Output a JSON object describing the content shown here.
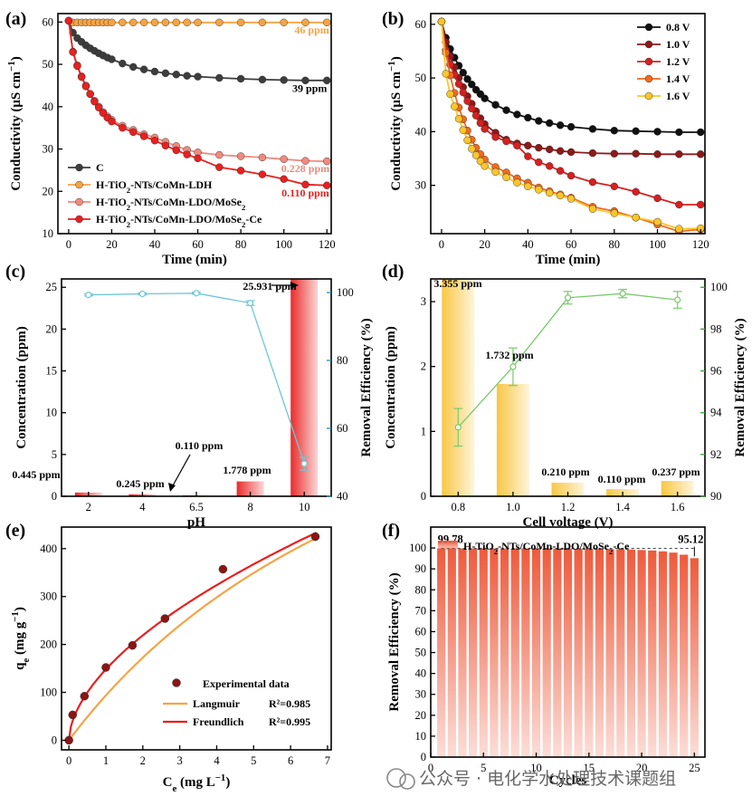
{
  "panels": {
    "a": "(a)",
    "b": "(b)",
    "c": "(c)",
    "d": "(d)",
    "e": "(e)",
    "f": "(f)"
  },
  "watermark": "公众号 · 电化学水处理技术课题组",
  "chart_data": [
    {
      "id": "a",
      "type": "line",
      "xlabel": "Time (min)",
      "ylabel": "Conductivity (μS cm⁻¹)",
      "xlim": [
        -5,
        122
      ],
      "ylim": [
        10,
        62
      ],
      "xticks": [
        0,
        20,
        40,
        60,
        80,
        100,
        120
      ],
      "yticks": [
        10,
        20,
        30,
        40,
        50,
        60
      ],
      "legend_position": "bottom-left",
      "series": [
        {
          "name": "C",
          "color": "#3d3d3d",
          "x": [
            0,
            2,
            4,
            6,
            8,
            10,
            12,
            14,
            16,
            18,
            20,
            25,
            30,
            35,
            40,
            45,
            50,
            55,
            60,
            70,
            80,
            90,
            100,
            110,
            120
          ],
          "y": [
            60.3,
            57.5,
            56.2,
            55.3,
            54.5,
            53.8,
            53.2,
            52.6,
            52.1,
            51.6,
            51.2,
            50.2,
            49.4,
            48.8,
            48.3,
            47.9,
            47.6,
            47.3,
            47.1,
            46.8,
            46.6,
            46.4,
            46.3,
            46.2,
            46.2
          ]
        },
        {
          "name": "H-TiO₂-NTs/CoMn-LDH",
          "color": "#f5a445",
          "x": [
            0,
            2,
            4,
            6,
            8,
            10,
            12,
            14,
            16,
            18,
            20,
            25,
            30,
            35,
            40,
            45,
            50,
            55,
            60,
            70,
            80,
            90,
            100,
            110,
            120
          ],
          "y": [
            60.3,
            59.9,
            59.9,
            59.9,
            59.9,
            59.9,
            59.9,
            59.9,
            59.9,
            59.9,
            59.9,
            59.9,
            59.9,
            59.9,
            59.9,
            59.9,
            59.9,
            59.9,
            59.9,
            59.9,
            59.9,
            59.9,
            59.9,
            59.9,
            59.9
          ]
        },
        {
          "name": "H-TiO₂-NTs/CoMn-LDO/MoSe₂",
          "color": "#f08a7e",
          "x": [
            0,
            2,
            4,
            6,
            8,
            10,
            12,
            14,
            16,
            18,
            20,
            25,
            30,
            35,
            40,
            45,
            50,
            55,
            60,
            70,
            80,
            90,
            100,
            110,
            120
          ],
          "y": [
            60.3,
            53.0,
            49.8,
            47.2,
            45.0,
            43.0,
            41.4,
            40.0,
            38.7,
            37.7,
            36.9,
            35.5,
            34.5,
            33.5,
            32.7,
            31.7,
            30.7,
            29.8,
            29.2,
            28.6,
            28.3,
            28.0,
            27.6,
            27.2,
            27.1
          ]
        },
        {
          "name": "H-TiO₂-NTs/CoMn-LDO/MoSe₂-Ce",
          "color": "#e8201f",
          "x": [
            0,
            2,
            4,
            6,
            8,
            10,
            12,
            14,
            16,
            18,
            20,
            25,
            30,
            35,
            40,
            45,
            50,
            55,
            60,
            70,
            80,
            90,
            100,
            110,
            120
          ],
          "y": [
            60.3,
            52.9,
            49.6,
            47.0,
            44.8,
            43.0,
            41.2,
            39.8,
            38.5,
            37.4,
            36.5,
            35.0,
            34.0,
            33.0,
            32.0,
            30.8,
            29.7,
            28.7,
            27.8,
            25.7,
            24.9,
            24.0,
            22.9,
            21.6,
            21.4
          ]
        }
      ],
      "annotations": [
        {
          "text": "46 ppm",
          "x": 113,
          "y": 57.3,
          "color": "#f5a445"
        },
        {
          "text": "39 ppm",
          "x": 112,
          "y": 43.5,
          "color": "#000000"
        },
        {
          "text": "0.228 ppm",
          "x": 110,
          "y": 24.5,
          "color": "#f08a7e"
        },
        {
          "text": "0.110 ppm",
          "x": 110,
          "y": 18.8,
          "color": "#e8201f"
        }
      ]
    },
    {
      "id": "b",
      "type": "line",
      "xlabel": "Time (min)",
      "ylabel": "Conductivity (μS cm⁻¹)",
      "xlim": [
        -5,
        122
      ],
      "ylim": [
        21,
        62
      ],
      "xticks": [
        0,
        20,
        40,
        60,
        80,
        100,
        120
      ],
      "yticks": [
        30,
        40,
        50,
        60
      ],
      "legend_position": "top-right",
      "series": [
        {
          "name": "0.8 V",
          "color": "#111111",
          "x": [
            0,
            2,
            4,
            6,
            8,
            10,
            12,
            14,
            16,
            18,
            20,
            25,
            30,
            35,
            40,
            45,
            50,
            55,
            60,
            70,
            80,
            90,
            100,
            110,
            120
          ],
          "y": [
            60.5,
            57.5,
            55.4,
            53.8,
            52.3,
            51.0,
            49.8,
            48.8,
            47.8,
            47.0,
            46.2,
            45.0,
            44.0,
            43.2,
            42.6,
            42.0,
            41.6,
            41.2,
            40.9,
            40.5,
            40.2,
            40.1,
            40.0,
            39.9,
            39.9
          ]
        },
        {
          "name": "1.0 V",
          "color": "#8c1a1a",
          "x": [
            0,
            2,
            4,
            6,
            8,
            10,
            12,
            14,
            16,
            18,
            20,
            25,
            30,
            35,
            40,
            45,
            50,
            55,
            60,
            70,
            80,
            90,
            100,
            110,
            120
          ],
          "y": [
            60.5,
            56.7,
            54.0,
            52.0,
            50.0,
            48.3,
            46.6,
            45.2,
            43.8,
            42.5,
            41.4,
            39.8,
            38.5,
            37.8,
            37.4,
            37.0,
            36.7,
            36.4,
            36.2,
            36.0,
            35.9,
            35.9,
            35.8,
            35.8,
            35.8
          ]
        },
        {
          "name": "1.2 V",
          "color": "#d62020",
          "x": [
            0,
            2,
            4,
            6,
            8,
            10,
            12,
            14,
            16,
            18,
            20,
            25,
            30,
            35,
            40,
            45,
            50,
            55,
            60,
            70,
            80,
            90,
            100,
            110,
            120
          ],
          "y": [
            60.5,
            55.2,
            52.5,
            50.6,
            48.9,
            47.3,
            45.7,
            44.3,
            43.0,
            41.6,
            40.5,
            39.0,
            38.2,
            37.4,
            35.4,
            34.3,
            33.6,
            32.7,
            31.8,
            30.6,
            29.8,
            28.8,
            27.6,
            26.4,
            26.4
          ]
        },
        {
          "name": "1.4 V",
          "color": "#f06a20",
          "x": [
            0,
            2,
            4,
            6,
            8,
            10,
            12,
            14,
            16,
            18,
            20,
            25,
            30,
            35,
            40,
            45,
            50,
            55,
            60,
            70,
            80,
            90,
            100,
            110,
            120
          ],
          "y": [
            60.5,
            54.7,
            50.5,
            47.2,
            44.5,
            42.3,
            40.2,
            38.5,
            37.0,
            35.8,
            34.8,
            33.4,
            32.4,
            31.3,
            30.5,
            29.6,
            28.9,
            28.3,
            27.7,
            26.0,
            25.2,
            24.0,
            22.7,
            21.4,
            21.8
          ]
        },
        {
          "name": "1.6 V",
          "color": "#fcc52a",
          "x": [
            0,
            2,
            4,
            6,
            8,
            10,
            12,
            14,
            16,
            18,
            20,
            25,
            30,
            35,
            40,
            45,
            50,
            55,
            60,
            70,
            80,
            90,
            100,
            110,
            120
          ],
          "y": [
            60.5,
            50.8,
            47.0,
            44.7,
            42.4,
            40.3,
            38.4,
            36.8,
            35.6,
            34.5,
            33.6,
            32.5,
            31.5,
            30.5,
            29.8,
            29.2,
            28.6,
            28.1,
            27.5,
            25.6,
            24.8,
            24.0,
            23.2,
            21.9,
            22.0
          ]
        }
      ]
    },
    {
      "id": "c",
      "type": "bar",
      "xlabel": "pH",
      "ylabel": "Concentration (ppm)",
      "y2label": "Removal Efficiency (%)",
      "categories": [
        "2",
        "4",
        "6.5",
        "8",
        "10"
      ],
      "values": [
        0.445,
        0.245,
        0.11,
        1.778,
        25.931
      ],
      "value_labels": [
        "0.445 ppm",
        "0.245 ppm",
        "0.110 ppm",
        "1.778 ppm",
        "25.931 ppm"
      ],
      "ylim": [
        0,
        26
      ],
      "y2lim": [
        40,
        104
      ],
      "yticks": [
        0,
        5,
        10,
        15,
        20,
        25
      ],
      "y2ticks": [
        40,
        60,
        80,
        100
      ],
      "efficiency": [
        99.3,
        99.6,
        99.8,
        96.9,
        49.6
      ],
      "efficiency_err": [
        0.3,
        0.3,
        0.3,
        0.7,
        1.9
      ],
      "bar_color": "#e8201f",
      "line_color": "#6ec7d6"
    },
    {
      "id": "d",
      "type": "bar",
      "xlabel": "Cell voltage (V)",
      "ylabel": "Concentration (ppm)",
      "y2label": "Removal Efficiency (%)",
      "categories": [
        "0.8",
        "1.0",
        "1.2",
        "1.4",
        "1.6"
      ],
      "values": [
        3.355,
        1.732,
        0.21,
        0.11,
        0.237
      ],
      "value_labels": [
        "3.355 ppm",
        "1.732 ppm",
        "0.210 ppm",
        "0.110 ppm",
        "0.237 ppm"
      ],
      "ylim": [
        0,
        3.35
      ],
      "y2lim": [
        90,
        100.4
      ],
      "yticks": [
        0,
        1,
        2,
        3
      ],
      "y2ticks": [
        90,
        92,
        94,
        96,
        98,
        100
      ],
      "efficiency": [
        93.3,
        96.2,
        99.5,
        99.7,
        99.4
      ],
      "efficiency_err": [
        0.9,
        0.9,
        0.3,
        0.2,
        0.4
      ],
      "bar_color": "#f8c43a",
      "line_color": "#78c96a"
    },
    {
      "id": "e",
      "type": "scatter",
      "xlabel": "Cₑ (mg L⁻¹)",
      "ylabel": "qₑ (mg g⁻¹)",
      "xlim": [
        -0.2,
        7.1
      ],
      "ylim": [
        -20,
        445
      ],
      "xticks": [
        0,
        1,
        2,
        3,
        4,
        5,
        6,
        7
      ],
      "yticks": [
        0,
        100,
        200,
        300,
        400
      ],
      "points": {
        "name": "Experimental data",
        "color": "#8b1515",
        "x": [
          0.0,
          0.1,
          0.42,
          1.0,
          1.72,
          2.6,
          4.17,
          6.67
        ],
        "y": [
          0,
          53,
          92,
          152,
          198,
          254,
          357,
          425
        ]
      },
      "fits": [
        {
          "name": "Langmuir",
          "r2": "R²=0.985",
          "color": "#f5a445",
          "model": "langmuir",
          "qm": 1100,
          "KL": 0.093
        },
        {
          "name": "Freundlich",
          "r2": "R²=0.995",
          "color": "#e8201f",
          "model": "freundlich",
          "KF": 148,
          "n": 1.77
        }
      ]
    },
    {
      "id": "f",
      "type": "bar",
      "xlabel": "Cycles",
      "ylabel": "Removal Efficiency (%)",
      "legend": "H-TiO₂-NTs/CoMn-LDO/MoSe₂-Ce",
      "ylim": [
        0,
        110
      ],
      "yticks": [
        0,
        10,
        20,
        30,
        40,
        50,
        60,
        70,
        80,
        90,
        100
      ],
      "xticks": [
        0,
        5,
        10,
        15,
        20,
        25
      ],
      "values": [
        99.78,
        99.78,
        99.77,
        99.76,
        99.75,
        99.75,
        99.74,
        99.73,
        99.72,
        99.71,
        99.7,
        99.68,
        99.65,
        99.6,
        99.55,
        99.5,
        99.4,
        99.3,
        99.2,
        99.0,
        98.8,
        98.4,
        97.8,
        96.8,
        95.12
      ],
      "first_label": "99.78",
      "last_label": "95.12",
      "bar_color": "#ee5a3c"
    }
  ]
}
